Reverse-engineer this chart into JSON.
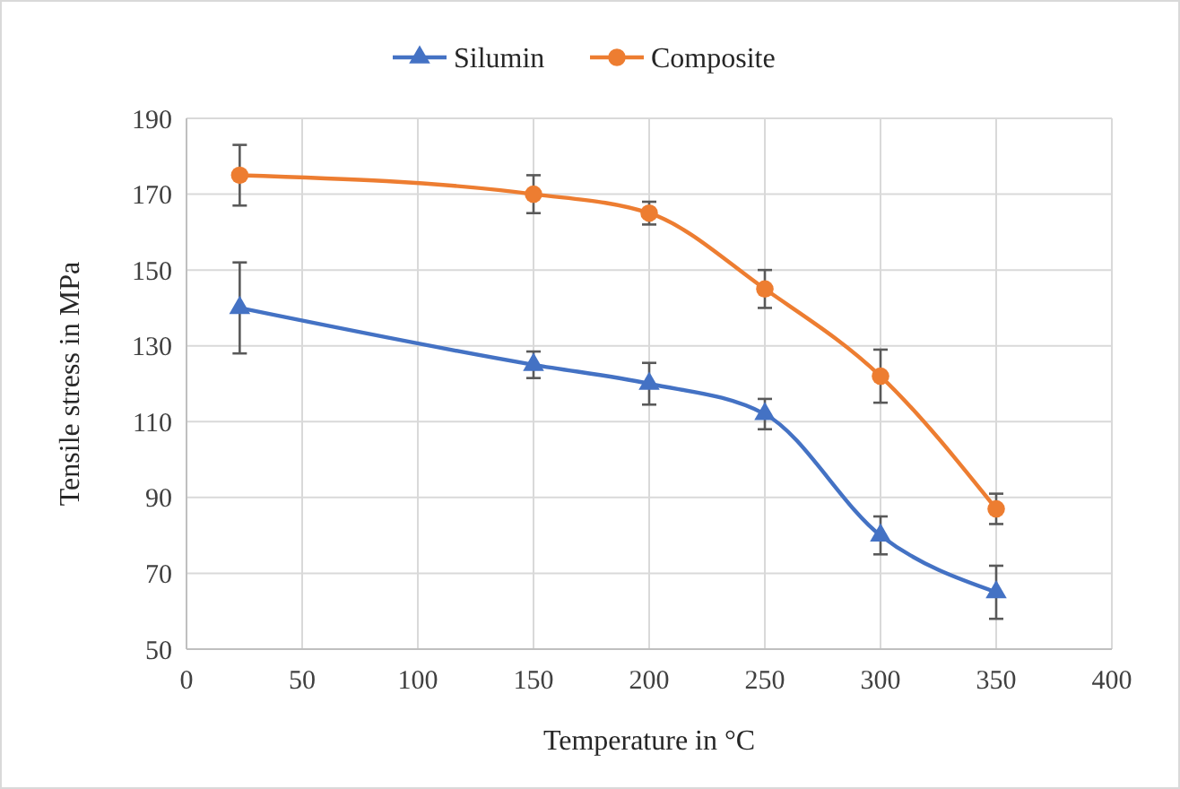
{
  "chart_data": {
    "type": "line",
    "xlabel": "Temperature in °C",
    "ylabel": "Tensile stress in MPa",
    "x": [
      23,
      150,
      200,
      250,
      300,
      350
    ],
    "xlim": [
      0,
      400
    ],
    "xticks": [
      0,
      50,
      100,
      150,
      200,
      250,
      300,
      350,
      400
    ],
    "ylim": [
      50,
      190
    ],
    "yticks": [
      50,
      70,
      90,
      110,
      130,
      150,
      170,
      190
    ],
    "grid": true,
    "legend": "top",
    "series": [
      {
        "name": "Silumin",
        "color": "#4472c4",
        "marker": "triangle",
        "values": [
          140,
          125,
          120,
          112,
          80,
          65
        ],
        "errors": [
          12,
          3.5,
          5.5,
          4,
          5,
          7
        ]
      },
      {
        "name": "Composite",
        "color": "#ed7d31",
        "marker": "circle",
        "values": [
          175,
          170,
          165,
          145,
          122,
          87
        ],
        "errors": [
          8,
          5,
          3,
          5,
          7,
          4
        ]
      }
    ]
  }
}
